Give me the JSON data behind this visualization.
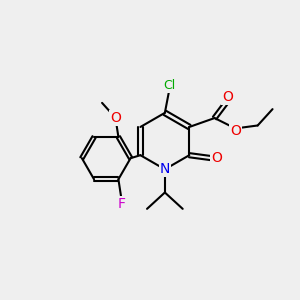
{
  "background_color": "#efefef",
  "bond_color": "#000000",
  "atom_colors": {
    "N": "#0000ee",
    "O": "#ee0000",
    "Cl": "#00aa00",
    "F": "#cc00cc"
  },
  "fig_size": [
    3.0,
    3.0
  ],
  "dpi": 100
}
